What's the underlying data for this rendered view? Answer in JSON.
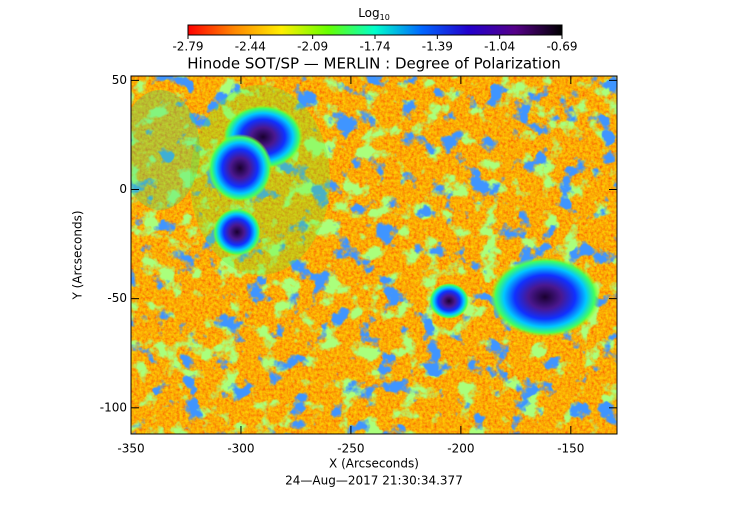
{
  "chart_data": {
    "type": "heatmap",
    "title": "Hinode SOT/SP — MERLIN : Degree of Polarization",
    "xlabel": "X (Arcseconds)",
    "ylabel": "Y (Arcseconds)",
    "date": "24—Aug—2017 21:30:34.377",
    "xlim": [
      -350,
      -129
    ],
    "ylim": [
      -112,
      52
    ],
    "xticks": [
      -350,
      -300,
      -250,
      -200,
      -150
    ],
    "yticks": [
      -100,
      -50,
      0,
      50
    ],
    "colorbar_label": "Log",
    "colorbar_label_sub": "10",
    "clim": [
      -2.79,
      -0.69
    ],
    "cticks": [
      -2.79,
      -2.44,
      -2.09,
      -1.74,
      -1.39,
      -1.04,
      -0.69
    ],
    "colormap": [
      "#ff0000",
      "#ff8800",
      "#ffee00",
      "#66ff00",
      "#00ffcc",
      "#0066ff",
      "#2200cc",
      "#550088",
      "#000000"
    ]
  }
}
